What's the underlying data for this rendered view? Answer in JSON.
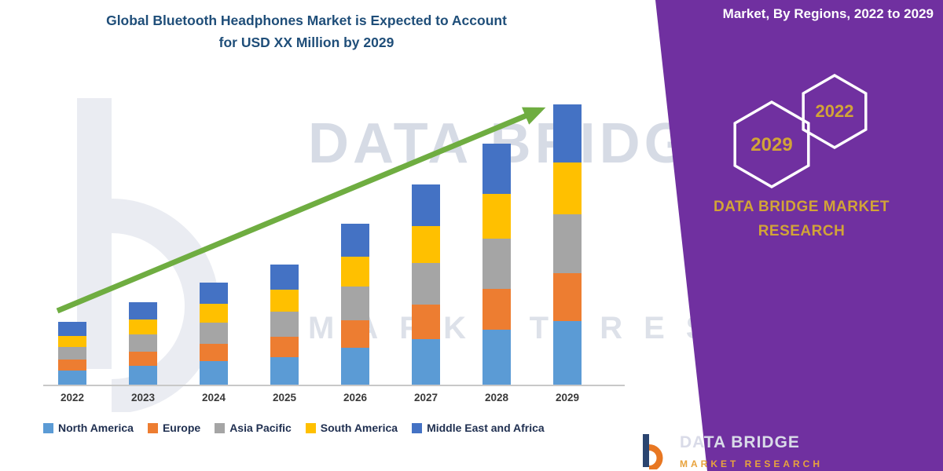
{
  "colors": {
    "panel_purple": "#7030A0",
    "gold": "#D2A437",
    "title_blue": "#1F4E79",
    "arrow_green": "#6FAD41",
    "footer_tagline_orange": "#E8A33D"
  },
  "header": {
    "title_line1": "Global Bluetooth Headphones Market is Expected to Account",
    "title_line2": "for USD XX Million by 2029"
  },
  "chart_data": {
    "type": "bar",
    "stacked": true,
    "title": "Global Bluetooth Headphones Market is Expected to Account for USD XX Million by 2029",
    "xlabel": "",
    "ylabel": "",
    "y_axis_visible": false,
    "legend_position": "bottom",
    "annotations": [
      "upward green trend arrow from 2022 to 2029"
    ],
    "categories": [
      "2022",
      "2023",
      "2024",
      "2025",
      "2026",
      "2027",
      "2028",
      "2029"
    ],
    "series": [
      {
        "name": "North America",
        "color": "#5B9BD5",
        "values": [
          1.8,
          2.4,
          3.0,
          3.5,
          4.7,
          5.8,
          7.0,
          8.1
        ]
      },
      {
        "name": "Europe",
        "color": "#ED7D31",
        "values": [
          1.4,
          1.8,
          2.2,
          2.6,
          3.5,
          4.4,
          5.2,
          6.1
        ]
      },
      {
        "name": "Asia Pacific",
        "color": "#A5A5A5",
        "values": [
          1.6,
          2.2,
          2.7,
          3.2,
          4.3,
          5.3,
          6.4,
          7.5
        ]
      },
      {
        "name": "South America",
        "color": "#FFC000",
        "values": [
          1.4,
          1.9,
          2.4,
          2.8,
          3.8,
          4.7,
          5.7,
          6.6
        ]
      },
      {
        "name": "Middle East and Africa",
        "color": "#4472C4",
        "values": [
          1.8,
          2.2,
          2.7,
          3.2,
          4.2,
          5.3,
          6.4,
          7.4
        ]
      }
    ]
  },
  "side_panel": {
    "title": "Market, By Regions, 2022 to 2029",
    "hexagon_years": [
      "2029",
      "2022"
    ],
    "brand_line1": "DATA BRIDGE MARKET",
    "brand_line2": "RESEARCH"
  },
  "watermarks": {
    "text_large": "DATA BRIDGE",
    "text_spaced": "MARKET RESEARCH"
  },
  "footer": {
    "brand": "DATA BRIDGE",
    "tagline": "MARKET RESEARCH"
  }
}
